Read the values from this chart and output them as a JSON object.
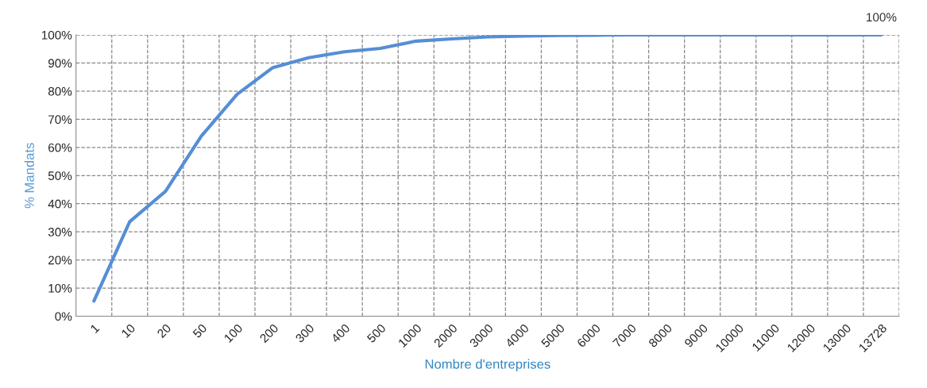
{
  "chart_data": {
    "type": "line",
    "xlabel": "Nombre d'entreprises",
    "ylabel": "% Mandats",
    "categories": [
      "1",
      "10",
      "20",
      "50",
      "100",
      "200",
      "300",
      "400",
      "500",
      "1000",
      "2000",
      "3000",
      "4000",
      "5000",
      "6000",
      "7000",
      "8000",
      "9000",
      "10000",
      "11000",
      "12000",
      "13000",
      "13728"
    ],
    "series": [
      {
        "color": "#558ed5",
        "values": [
          5.4,
          33.6,
          44.4,
          64,
          78.9,
          88.4,
          91.9,
          94,
          95.2,
          97.8,
          98.6,
          99.3,
          99.6,
          99.8,
          99.9,
          100,
          100,
          100,
          100,
          100,
          100,
          100,
          100
        ],
        "value_labels": [
          null,
          null,
          null,
          null,
          null,
          null,
          null,
          null,
          null,
          null,
          null,
          null,
          null,
          null,
          null,
          null,
          null,
          null,
          null,
          null,
          null,
          null,
          "100%"
        ]
      }
    ],
    "ylim": [
      0,
      100
    ],
    "yticks": [
      {
        "value": 0,
        "label": "0%"
      },
      {
        "value": 10,
        "label": "10%"
      },
      {
        "value": 20,
        "label": "20%"
      },
      {
        "value": 30,
        "label": "30%"
      },
      {
        "value": 40,
        "label": "40%"
      },
      {
        "value": 50,
        "label": "50%"
      },
      {
        "value": 60,
        "label": "60%"
      },
      {
        "value": 70,
        "label": "70%"
      },
      {
        "value": 80,
        "label": "80%"
      },
      {
        "value": 90,
        "label": "90%"
      },
      {
        "value": 100,
        "label": "100%"
      }
    ],
    "grid": true,
    "marker": "none",
    "line_style": "solid",
    "legend": false
  }
}
